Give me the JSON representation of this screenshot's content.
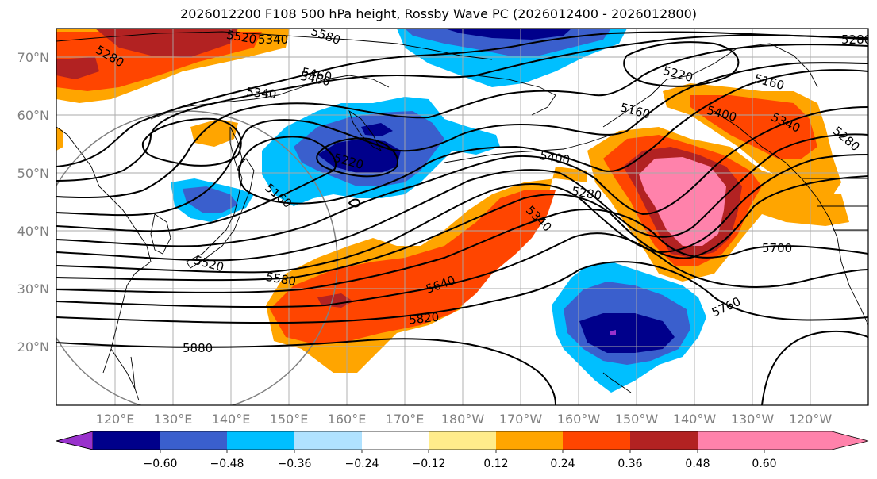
{
  "title": "2026012200 F108 500 hPa height, Rossby Wave PC (2026012400 - 2026012800)",
  "map": {
    "lon_ticks": [
      "120°E",
      "130°E",
      "140°E",
      "150°E",
      "160°E",
      "170°E",
      "180°W",
      "170°W",
      "160°W",
      "150°W",
      "140°W",
      "130°W",
      "120°W"
    ],
    "lat_ticks": [
      "70°N",
      "60°N",
      "50°N",
      "40°N",
      "30°N",
      "20°N"
    ],
    "contour_labels": [
      "5880",
      "5820",
      "5760",
      "5700",
      "5640",
      "5580",
      "5520",
      "5460",
      "5400",
      "5340",
      "5280",
      "5220",
      "5160",
      "5520",
      "5580",
      "5460",
      "5340",
      "5280",
      "5220",
      "5160",
      "5400",
      "5340",
      "5280",
      "5160",
      "5280",
      "5340",
      "5400"
    ]
  },
  "colorbar": {
    "ticks": [
      "−0.60",
      "−0.48",
      "−0.36",
      "−0.24",
      "−0.12",
      "0.12",
      "0.24",
      "0.36",
      "0.48",
      "0.60"
    ],
    "colors": [
      "#9932cc",
      "#00008b",
      "#3a5fcd",
      "#00bfff",
      "#b0e2ff",
      "#ffffff",
      "#ffec8b",
      "#ffa500",
      "#ff4500",
      "#b22222",
      "#ff82ab"
    ]
  }
}
